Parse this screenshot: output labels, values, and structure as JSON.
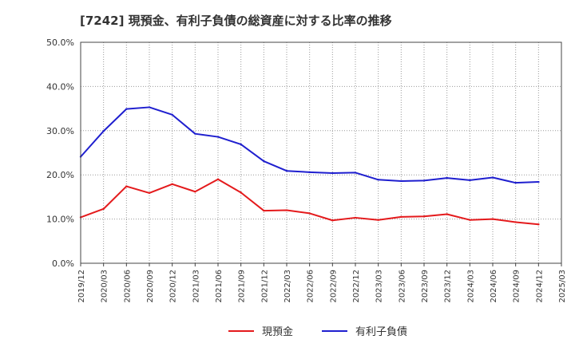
{
  "chart_data": {
    "type": "line",
    "title": "[7242]  現預金、有利子負債の総資産に対する比率の推移",
    "xlabel": "",
    "ylabel": "",
    "ylim": [
      0,
      50
    ],
    "grid": true,
    "legend_position": "bottom",
    "y_ticks": [
      0,
      10,
      20,
      30,
      40,
      50
    ],
    "y_tick_labels": [
      "0.0%",
      "10.0%",
      "20.0%",
      "30.0%",
      "40.0%",
      "50.0%"
    ],
    "categories": [
      "2019/12",
      "2020/03",
      "2020/06",
      "2020/09",
      "2020/12",
      "2021/03",
      "2021/06",
      "2021/09",
      "2021/12",
      "2022/03",
      "2022/06",
      "2022/09",
      "2022/12",
      "2023/03",
      "2023/06",
      "2023/09",
      "2023/12",
      "2024/03",
      "2024/06",
      "2024/09",
      "2024/12",
      "2025/03"
    ],
    "series": [
      {
        "name": "現預金",
        "color": "#e41a1c",
        "values": [
          10.4,
          12.3,
          17.4,
          15.9,
          17.9,
          16.2,
          19.0,
          16.0,
          11.9,
          12.0,
          11.3,
          9.7,
          10.3,
          9.8,
          10.5,
          10.6,
          11.1,
          9.8,
          10.0,
          9.3,
          8.8,
          null
        ]
      },
      {
        "name": "有利子負債",
        "color": "#1f1fcf",
        "values": [
          24.1,
          29.9,
          34.9,
          35.3,
          33.6,
          29.3,
          28.6,
          26.9,
          23.1,
          20.9,
          20.6,
          20.4,
          20.5,
          18.9,
          18.6,
          18.7,
          19.3,
          18.8,
          19.4,
          18.2,
          18.4,
          null
        ]
      }
    ]
  }
}
